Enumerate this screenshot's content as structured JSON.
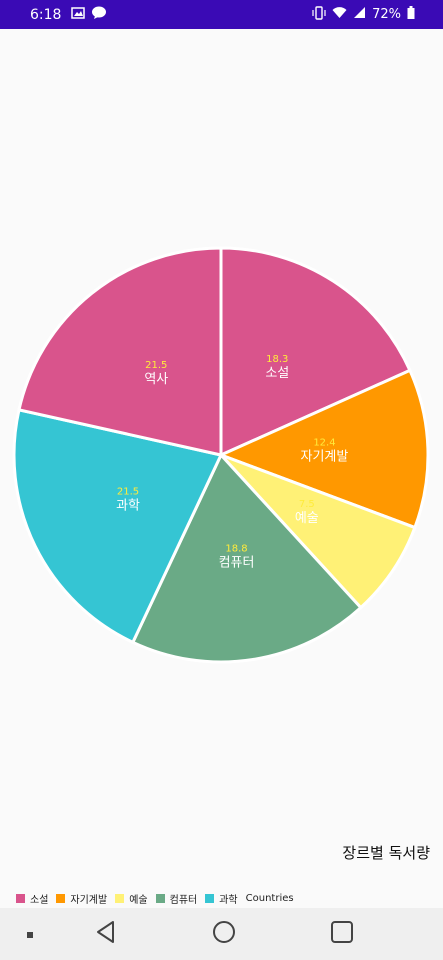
{
  "status_bar": {
    "time": "6:18",
    "battery": "72%",
    "icons": [
      "gallery-icon",
      "chat-icon",
      "vibrate-icon",
      "wifi-icon",
      "signal-icon",
      "battery-icon"
    ]
  },
  "chart_data": {
    "type": "pie",
    "description": "장르별 독서량",
    "slices": [
      {
        "label": "소설",
        "value": 18.3,
        "color": "#d9548c"
      },
      {
        "label": "자기계발",
        "value": 12.4,
        "color": "#ff9800"
      },
      {
        "label": "예술",
        "value": 7.5,
        "color": "#fff176"
      },
      {
        "label": "컴퓨터",
        "value": 18.8,
        "color": "#6aaa86"
      },
      {
        "label": "과학",
        "value": 21.5,
        "color": "#35c5d3"
      },
      {
        "label": "역사",
        "value": 21.5,
        "color": "#d9548c"
      }
    ],
    "legend_entries": [
      {
        "label": "소설",
        "color": "#d9548c"
      },
      {
        "label": "자기계발",
        "color": "#ff9800"
      },
      {
        "label": "예술",
        "color": "#fff176"
      },
      {
        "label": "컴퓨터",
        "color": "#6aaa86"
      },
      {
        "label": "과학",
        "color": "#35c5d3"
      }
    ],
    "legend_title": "Countries",
    "legend_placement": "bottom-left",
    "value_label_color": "#ffeb3b",
    "name_label_color": "#ffffff"
  }
}
